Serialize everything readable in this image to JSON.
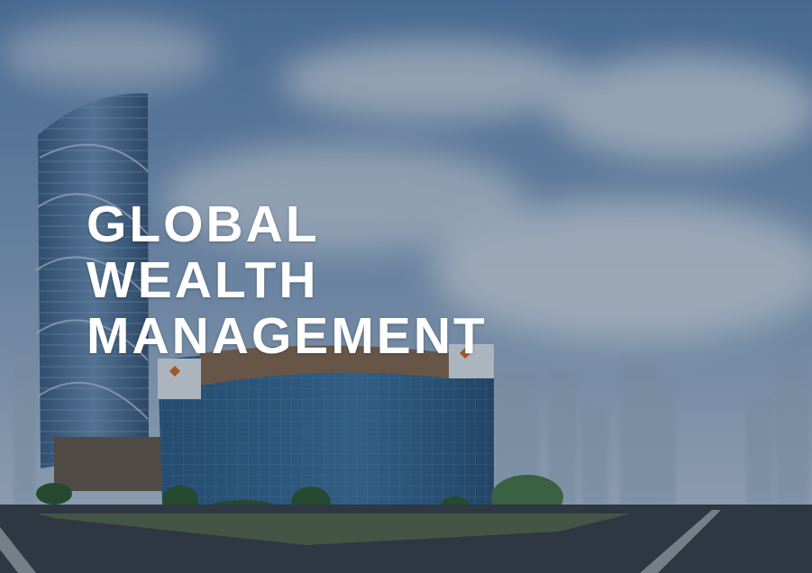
{
  "hero": {
    "heading": [
      "GLOBAL",
      "WEALTH",
      "MANAGEMENT"
    ]
  }
}
